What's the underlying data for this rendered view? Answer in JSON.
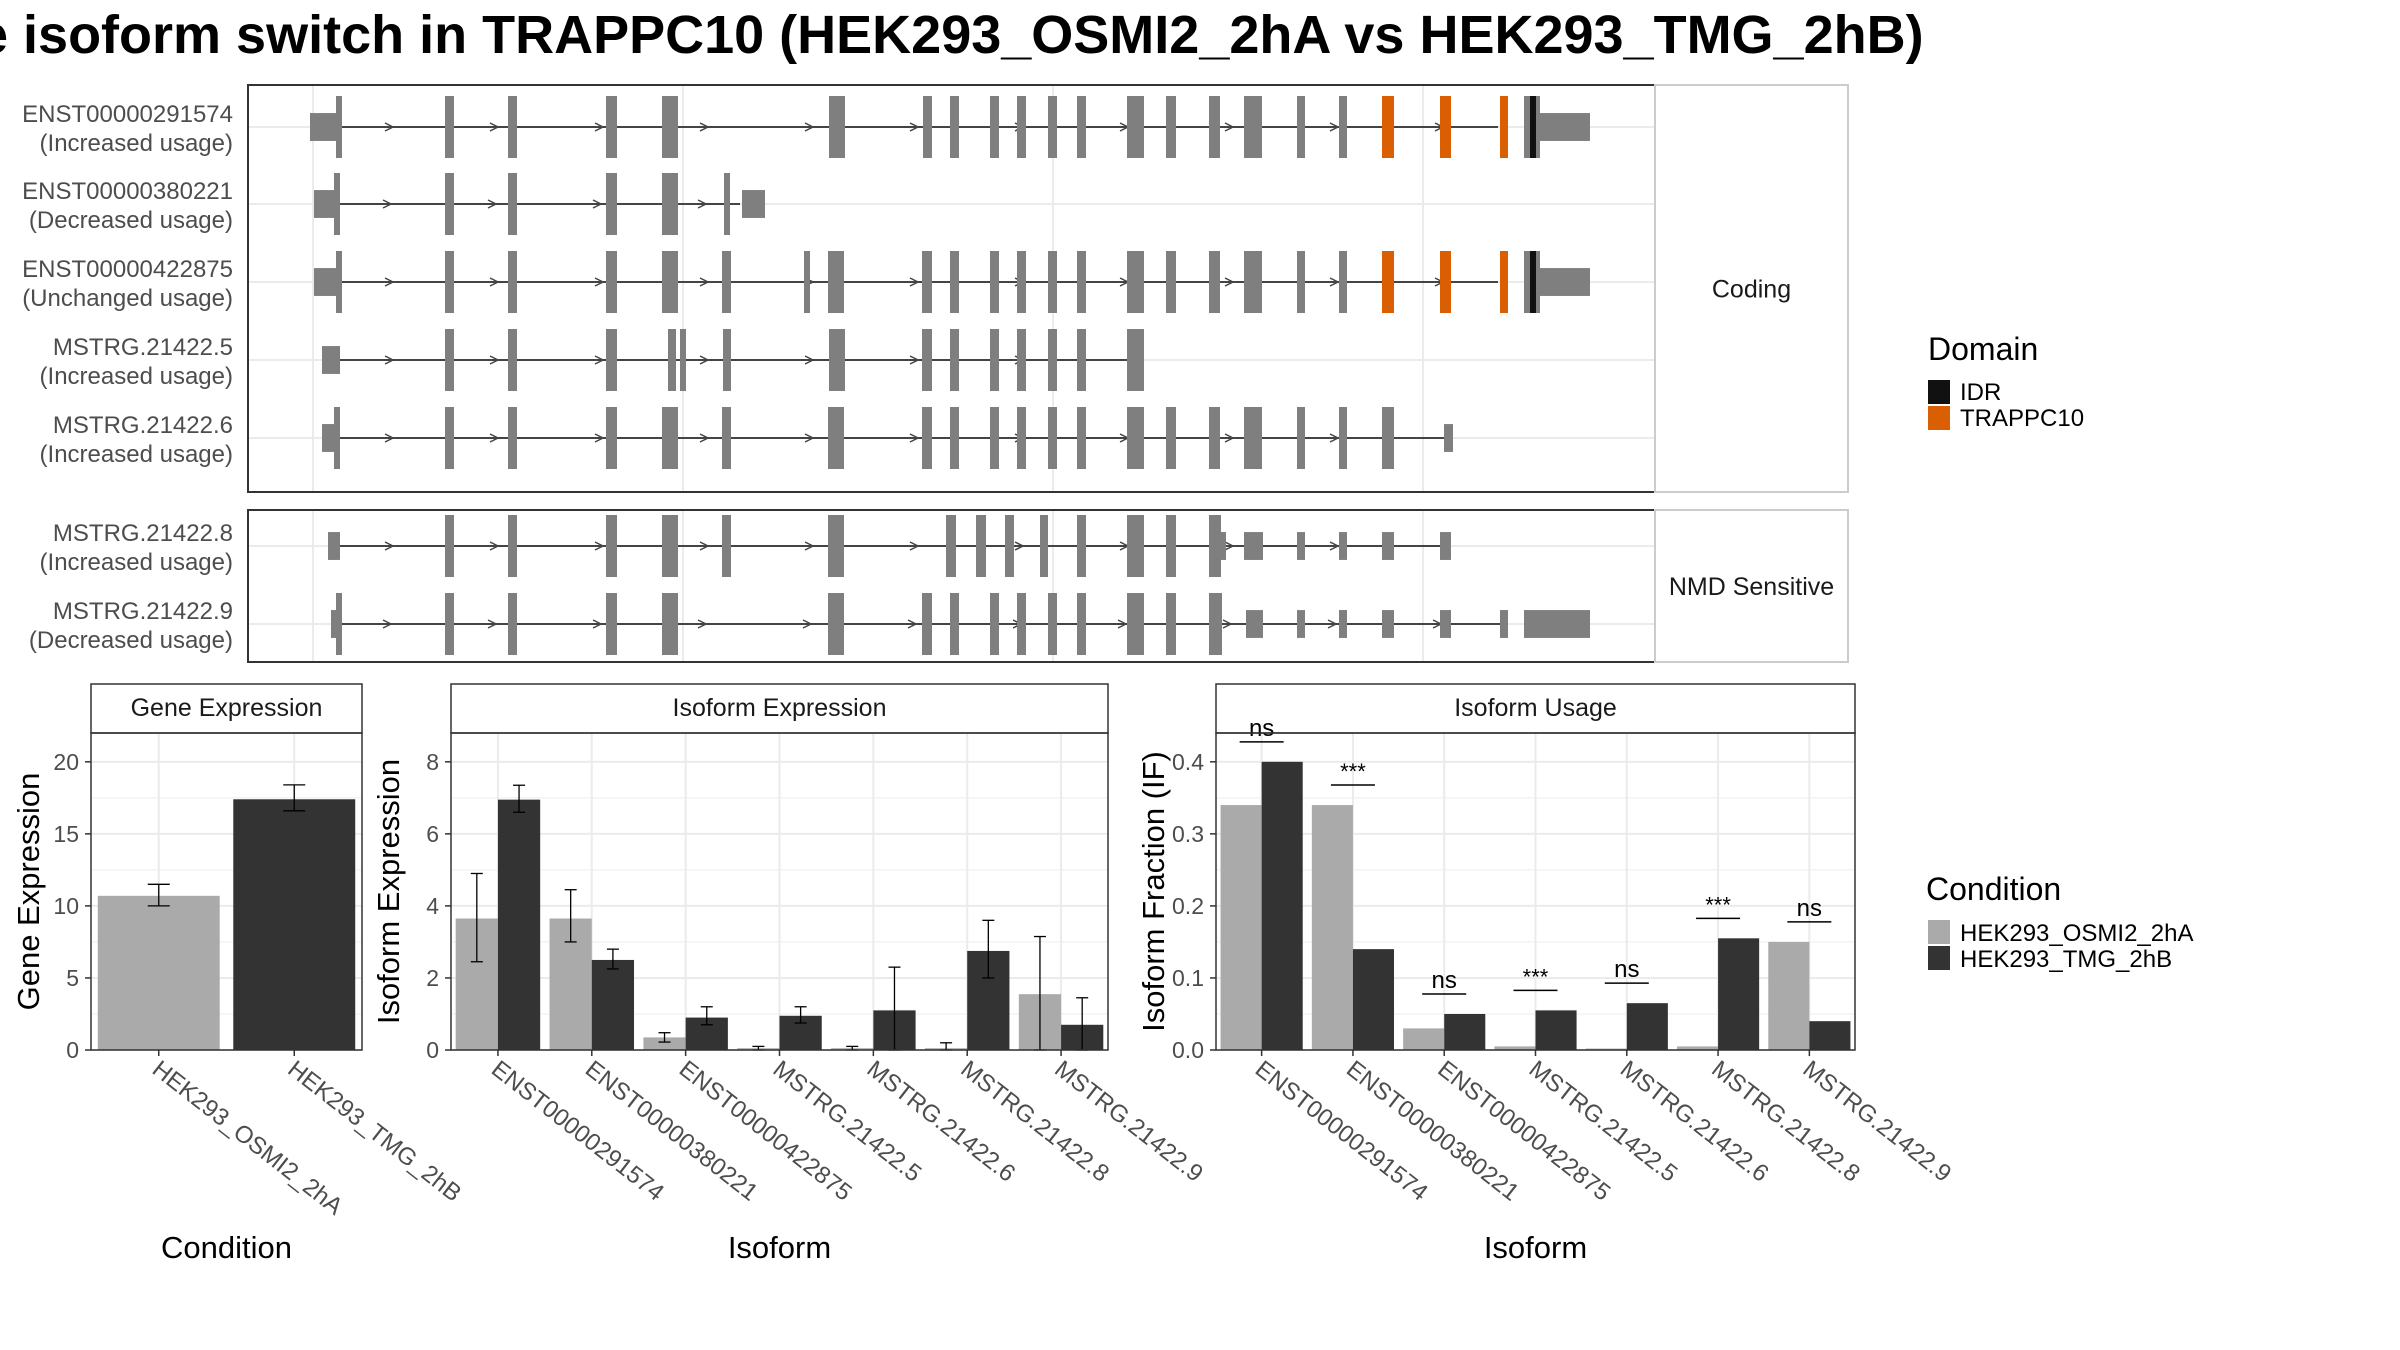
{
  "page": {
    "title": "e isoform switch in TRAPPC10 (HEK293_OSMI2_2hA vs HEK293_TMG_2hB)"
  },
  "colors": {
    "exon": "#7f7f7f",
    "intron": "#444444",
    "idr": "#111111",
    "trappc10": "#d95f02",
    "cond_a": "#aaaaaa",
    "cond_b": "#333333",
    "grid": "#ebebeb",
    "strip_bg": "#ffffff"
  },
  "transcript_panel": {
    "groups": [
      {
        "label": "Coding",
        "rows": [
          {
            "id": "ENST00000291574",
            "usage": "(Increased usage)"
          },
          {
            "id": "ENST00000380221",
            "usage": "(Decreased usage)"
          },
          {
            "id": "ENST00000422875",
            "usage": "(Unchanged usage)"
          },
          {
            "id": "MSTRG.21422.5",
            "usage": "(Increased usage)"
          },
          {
            "id": "MSTRG.21422.6",
            "usage": "(Increased usage)"
          }
        ]
      },
      {
        "label": "NMD Sensitive",
        "rows": [
          {
            "id": "MSTRG.21422.8",
            "usage": "(Increased usage)"
          },
          {
            "id": "MSTRG.21422.9",
            "usage": "(Decreased usage)"
          }
        ]
      }
    ],
    "legend": {
      "title": "Domain",
      "items": [
        {
          "label": "IDR",
          "color": "#111111"
        },
        {
          "label": "TRAPPC10",
          "color": "#d95f02"
        }
      ]
    }
  },
  "chart_data": [
    {
      "type": "bar",
      "title": "Gene Expression",
      "xlabel": "Condition",
      "ylabel": "Gene Expression",
      "categories": [
        "HEK293_OSMI2_2hA",
        "HEK293_TMG_2hB"
      ],
      "values": [
        10.7,
        17.4
      ],
      "errors": [
        [
          10.0,
          11.5
        ],
        [
          16.6,
          18.4
        ]
      ],
      "colors": [
        "#aaaaaa",
        "#333333"
      ],
      "ylim": [
        0,
        22
      ],
      "yticks": [
        0,
        5,
        10,
        15,
        20
      ]
    },
    {
      "type": "bar",
      "title": "Isoform Expression",
      "xlabel": "Isoform",
      "ylabel": "Isoform Expression",
      "categories": [
        "ENST00000291574",
        "ENST00000380221",
        "ENST00000422875",
        "MSTRG.21422.5",
        "MSTRG.21422.6",
        "MSTRG.21422.8",
        "MSTRG.21422.9"
      ],
      "series": [
        {
          "name": "HEK293_OSMI2_2hA",
          "values": [
            3.65,
            3.65,
            0.35,
            0.05,
            0.05,
            0.05,
            1.55
          ],
          "errors": [
            [
              2.45,
              4.9
            ],
            [
              3.0,
              4.45
            ],
            [
              0.22,
              0.48
            ],
            [
              0.0,
              0.1
            ],
            [
              0.0,
              0.1
            ],
            [
              0.0,
              0.2
            ],
            [
              0.0,
              3.15
            ]
          ]
        },
        {
          "name": "HEK293_TMG_2hB",
          "values": [
            6.95,
            2.5,
            0.9,
            0.95,
            1.1,
            2.75,
            0.7
          ],
          "errors": [
            [
              6.6,
              7.35
            ],
            [
              2.25,
              2.8
            ],
            [
              0.7,
              1.2
            ],
            [
              0.75,
              1.2
            ],
            [
              0.0,
              2.3
            ],
            [
              2.0,
              3.6
            ],
            [
              0.0,
              1.45
            ]
          ]
        }
      ],
      "ylim": [
        0,
        8.8
      ],
      "yticks": [
        0,
        2,
        4,
        6,
        8
      ]
    },
    {
      "type": "bar",
      "title": "Isoform Usage",
      "xlabel": "Isoform",
      "ylabel": "Isoform Fraction (IF)",
      "categories": [
        "ENST00000291574",
        "ENST00000380221",
        "ENST00000422875",
        "MSTRG.21422.5",
        "MSTRG.21422.6",
        "MSTRG.21422.8",
        "MSTRG.21422.9"
      ],
      "series": [
        {
          "name": "HEK293_OSMI2_2hA",
          "values": [
            0.34,
            0.34,
            0.03,
            0.005,
            0.002,
            0.005,
            0.15
          ]
        },
        {
          "name": "HEK293_TMG_2hB",
          "values": [
            0.4,
            0.14,
            0.05,
            0.055,
            0.065,
            0.155,
            0.04
          ]
        }
      ],
      "significance": [
        "ns",
        "***",
        "ns",
        "***",
        "ns",
        "***",
        "ns"
      ],
      "ylim": [
        0,
        0.44
      ],
      "yticks": [
        0.0,
        0.1,
        0.2,
        0.3,
        0.4
      ]
    }
  ],
  "condition_legend": {
    "title": "Condition",
    "items": [
      {
        "label": "HEK293_OSMI2_2hA",
        "color": "#aaaaaa"
      },
      {
        "label": "HEK293_TMG_2hB",
        "color": "#333333"
      }
    ]
  }
}
